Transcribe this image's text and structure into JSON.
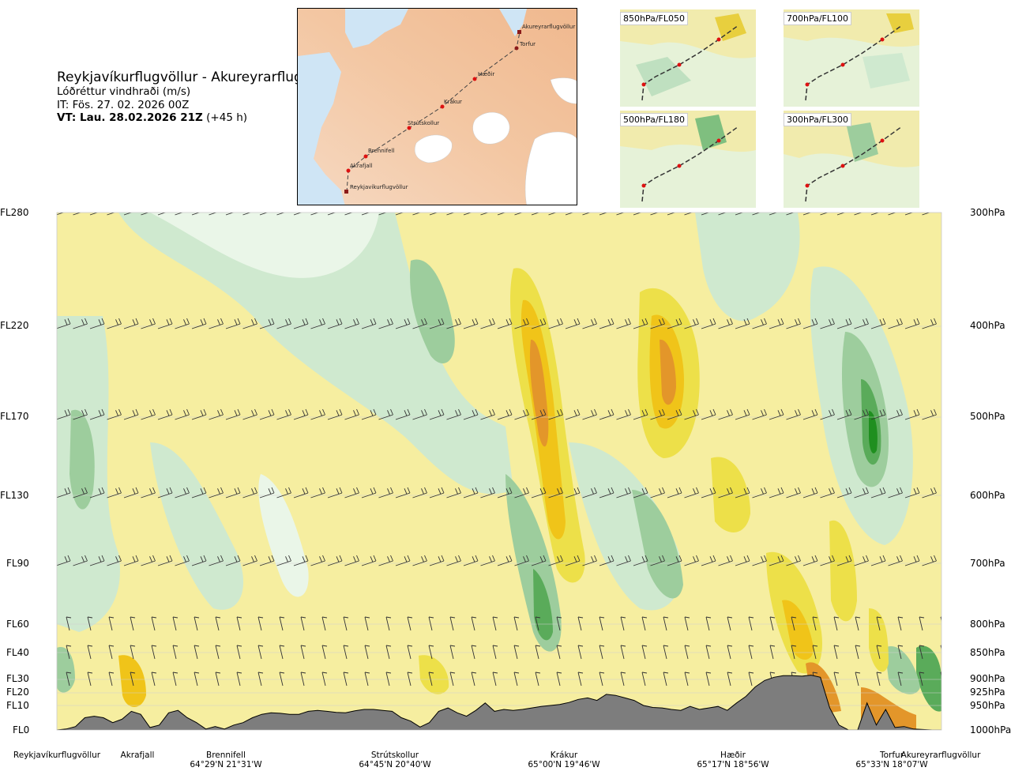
{
  "header": {
    "route": "Reykjavíkurflugvöllur - Akureyrarflugvöllur",
    "subtitle": "Lóðréttur vindhraði (m/s)",
    "issue_time": "IT: Fös. 27. 02. 2026 00Z",
    "valid_time_bold": "VT: Lau. 28.02.2026 21Z",
    "valid_offset": "(+45 h)"
  },
  "route_map": {
    "waypoints": [
      "Reykjavíkurflugvöllur",
      "Akrafjall",
      "Brennifell",
      "Strútskollur",
      "Krákur",
      "Hæðir",
      "Torfur",
      "Akureyrarflugvöllur"
    ]
  },
  "level_maps": [
    {
      "label": "850hPa/FL050"
    },
    {
      "label": "700hPa/FL100"
    },
    {
      "label": "500hPa/FL180"
    },
    {
      "label": "300hPa/FL300"
    }
  ],
  "chart_data": {
    "type": "heatmap",
    "title": "Lóðréttur vindhraði (m/s)",
    "y_left_ticks": [
      {
        "label": "FL280",
        "hpa": 300
      },
      {
        "label": "FL220",
        "hpa": 400
      },
      {
        "label": "FL170",
        "hpa": 500
      },
      {
        "label": "FL130",
        "hpa": 600
      },
      {
        "label": "FL90",
        "hpa": 700
      },
      {
        "label": "FL60",
        "hpa": 800
      },
      {
        "label": "FL40",
        "hpa": 850
      },
      {
        "label": "FL30",
        "hpa": 900
      },
      {
        "label": "FL20",
        "hpa": 925
      },
      {
        "label": "FL10",
        "hpa": 950
      },
      {
        "label": "FL0",
        "hpa": 1000
      }
    ],
    "y_right_ticks": [
      "300hPa",
      "400hPa",
      "500hPa",
      "600hPa",
      "700hPa",
      "800hPa",
      "850hPa",
      "900hPa",
      "925hPa",
      "950hPa",
      "1000hPa"
    ],
    "ylim_hpa": [
      1000,
      300
    ],
    "x_locations": [
      {
        "name": "Reykjavíkurflugvöllur",
        "coords": "",
        "frac": 0.0
      },
      {
        "name": "Akrafjall",
        "coords": "",
        "frac": 0.09
      },
      {
        "name": "Brennifell",
        "coords": "64°29'N 21°31'W",
        "frac": 0.186
      },
      {
        "name": "Strútskollur",
        "coords": "64°45'N 20°40'W",
        "frac": 0.38
      },
      {
        "name": "Krákur",
        "coords": "65°00'N 19°46'W",
        "frac": 0.57
      },
      {
        "name": "Hæðir",
        "coords": "65°17'N 18°56'W",
        "frac": 0.76
      },
      {
        "name": "Torfur",
        "coords": "65°33'N 18°07'W",
        "frac": 0.935
      },
      {
        "name": "Akureyrarflugvöllur",
        "coords": "",
        "frac": 1.0
      }
    ],
    "terrain_hpa": [
      1000,
      998,
      993,
      975,
      972,
      975,
      985,
      978,
      962,
      968,
      995,
      990,
      965,
      960,
      975,
      985,
      998,
      993,
      998,
      990,
      985,
      975,
      968,
      965,
      966,
      968,
      968,
      962,
      960,
      962,
      964,
      965,
      961,
      958,
      958,
      960,
      962,
      975,
      982,
      994,
      985,
      962,
      955,
      965,
      972,
      960,
      945,
      962,
      958,
      960,
      958,
      955,
      952,
      950,
      948,
      944,
      938,
      935,
      940,
      928,
      930,
      935,
      940,
      950,
      954,
      955,
      958,
      960,
      952,
      958,
      955,
      952,
      960,
      945,
      932,
      914,
      902,
      896,
      893,
      893,
      894,
      892,
      896,
      955,
      990,
      1000,
      1000,
      945,
      990,
      958,
      995,
      993,
      998,
      999,
      1000,
      1000
    ],
    "colour_scale": [
      "#1f8f1f",
      "#5aab5a",
      "#9dcd9d",
      "#cfe9cf",
      "#eaf6e8",
      "#ffffff",
      "#fdfbd8",
      "#f6eea0",
      "#ede049",
      "#f0c419",
      "#e3962a",
      "#c76f1e"
    ]
  }
}
